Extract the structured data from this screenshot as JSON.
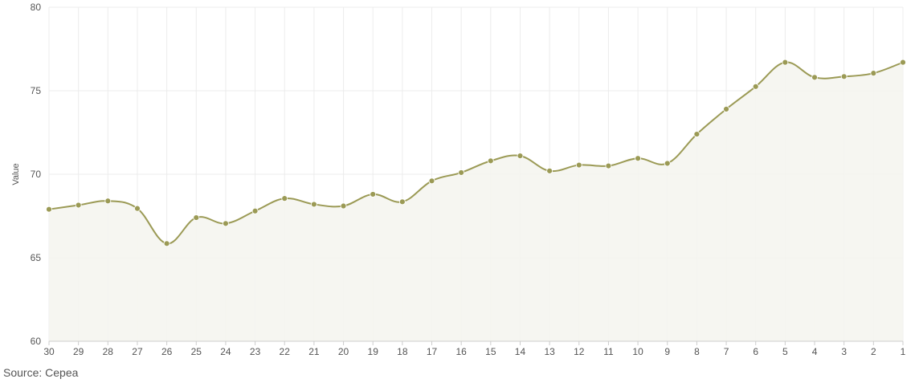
{
  "chart_data": {
    "type": "area",
    "x": [
      "30",
      "29",
      "28",
      "27",
      "26",
      "25",
      "24",
      "23",
      "22",
      "21",
      "20",
      "19",
      "18",
      "17",
      "16",
      "15",
      "14",
      "13",
      "12",
      "11",
      "10",
      "9",
      "8",
      "7",
      "6",
      "5",
      "4",
      "3",
      "2",
      "1"
    ],
    "series": [
      {
        "values": [
          67.9,
          68.15,
          68.4,
          67.95,
          65.85,
          67.4,
          67.05,
          67.8,
          68.55,
          68.2,
          68.1,
          68.8,
          68.35,
          69.6,
          70.1,
          70.8,
          71.1,
          70.2,
          70.55,
          70.5,
          70.95,
          70.65,
          72.4,
          73.9,
          75.25,
          76.7,
          75.8,
          75.85,
          76.05,
          76.7
        ]
      }
    ],
    "ylabel": "Value",
    "xlabel": "",
    "ylim": [
      60,
      80
    ],
    "yticks": [
      60,
      65,
      70,
      75,
      80
    ],
    "grid": true,
    "colors": {
      "line": "#9b9a55",
      "area": "#f5f5f0",
      "grid": "#ececec"
    }
  },
  "source": "Source: Cepea"
}
